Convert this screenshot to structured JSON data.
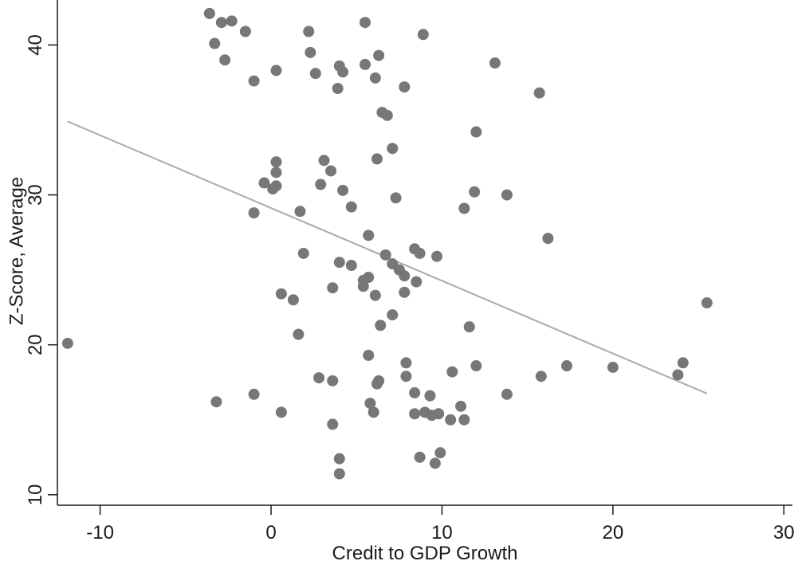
{
  "chart_data": {
    "type": "scatter",
    "title": "",
    "xlabel": "Credit to GDP Growth",
    "ylabel": "Z-Score, Average",
    "xlim": [
      -12.5,
      30.5
    ],
    "ylim": [
      9.3,
      43.0
    ],
    "x_ticks": [
      -10,
      0,
      10,
      20,
      30
    ],
    "y_ticks": [
      10,
      20,
      30,
      40
    ],
    "grid": false,
    "legend": "none",
    "point_color": "#777777",
    "line_color": "#aaaaaa",
    "fit_line": {
      "x": [
        -11.9,
        25.5
      ],
      "y": [
        34.9,
        16.75
      ]
    },
    "points": [
      [
        -3.6,
        42.1
      ],
      [
        -2.9,
        41.5
      ],
      [
        -2.3,
        41.6
      ],
      [
        -1.5,
        40.9
      ],
      [
        -3.3,
        40.1
      ],
      [
        -2.7,
        39.0
      ],
      [
        2.2,
        40.9
      ],
      [
        2.3,
        39.5
      ],
      [
        2.6,
        38.1
      ],
      [
        0.3,
        38.3
      ],
      [
        -1.0,
        37.6
      ],
      [
        5.5,
        41.5
      ],
      [
        8.9,
        40.7
      ],
      [
        6.3,
        39.3
      ],
      [
        5.5,
        38.7
      ],
      [
        4.0,
        38.6
      ],
      [
        4.2,
        38.2
      ],
      [
        6.1,
        37.8
      ],
      [
        3.9,
        37.1
      ],
      [
        7.8,
        37.2
      ],
      [
        13.1,
        38.8
      ],
      [
        15.7,
        36.8
      ],
      [
        6.5,
        35.5
      ],
      [
        6.8,
        35.3
      ],
      [
        12.0,
        34.2
      ],
      [
        7.1,
        33.1
      ],
      [
        6.2,
        32.4
      ],
      [
        0.3,
        32.2
      ],
      [
        0.3,
        31.5
      ],
      [
        3.1,
        32.3
      ],
      [
        3.5,
        31.6
      ],
      [
        -0.4,
        30.8
      ],
      [
        0.3,
        30.6
      ],
      [
        0.1,
        30.4
      ],
      [
        2.9,
        30.7
      ],
      [
        4.2,
        30.3
      ],
      [
        7.3,
        29.8
      ],
      [
        11.9,
        30.2
      ],
      [
        13.8,
        30.0
      ],
      [
        4.7,
        29.2
      ],
      [
        11.3,
        29.1
      ],
      [
        -1.0,
        28.8
      ],
      [
        1.7,
        28.9
      ],
      [
        5.7,
        27.3
      ],
      [
        16.2,
        27.1
      ],
      [
        8.4,
        26.4
      ],
      [
        8.7,
        26.1
      ],
      [
        9.7,
        25.9
      ],
      [
        1.9,
        26.1
      ],
      [
        6.7,
        26.0
      ],
      [
        7.1,
        25.4
      ],
      [
        4.0,
        25.5
      ],
      [
        4.7,
        25.3
      ],
      [
        7.5,
        25.0
      ],
      [
        7.8,
        24.6
      ],
      [
        5.7,
        24.5
      ],
      [
        5.4,
        24.3
      ],
      [
        8.5,
        24.2
      ],
      [
        5.4,
        23.9
      ],
      [
        3.6,
        23.8
      ],
      [
        7.8,
        23.5
      ],
      [
        0.6,
        23.4
      ],
      [
        6.1,
        23.3
      ],
      [
        1.3,
        23.0
      ],
      [
        7.1,
        22.0
      ],
      [
        6.4,
        21.3
      ],
      [
        11.6,
        21.2
      ],
      [
        1.6,
        20.7
      ],
      [
        -11.9,
        20.1
      ],
      [
        5.7,
        19.3
      ],
      [
        7.9,
        18.8
      ],
      [
        12.0,
        18.6
      ],
      [
        10.6,
        18.2
      ],
      [
        7.9,
        17.9
      ],
      [
        15.8,
        17.9
      ],
      [
        17.3,
        18.6
      ],
      [
        20.0,
        18.5
      ],
      [
        24.1,
        18.8
      ],
      [
        23.8,
        18.0
      ],
      [
        25.5,
        22.8
      ],
      [
        2.8,
        17.8
      ],
      [
        3.6,
        17.6
      ],
      [
        6.3,
        17.6
      ],
      [
        6.2,
        17.4
      ],
      [
        -3.2,
        16.2
      ],
      [
        -1.0,
        16.7
      ],
      [
        8.4,
        16.8
      ],
      [
        9.3,
        16.6
      ],
      [
        13.8,
        16.7
      ],
      [
        5.8,
        16.1
      ],
      [
        11.1,
        15.9
      ],
      [
        0.6,
        15.5
      ],
      [
        6.0,
        15.5
      ],
      [
        8.4,
        15.4
      ],
      [
        9.0,
        15.5
      ],
      [
        9.4,
        15.3
      ],
      [
        9.8,
        15.4
      ],
      [
        10.5,
        15.0
      ],
      [
        11.3,
        15.0
      ],
      [
        3.6,
        14.7
      ],
      [
        8.7,
        12.5
      ],
      [
        9.9,
        12.8
      ],
      [
        9.6,
        12.1
      ],
      [
        4.0,
        12.4
      ],
      [
        4.0,
        11.4
      ]
    ]
  }
}
